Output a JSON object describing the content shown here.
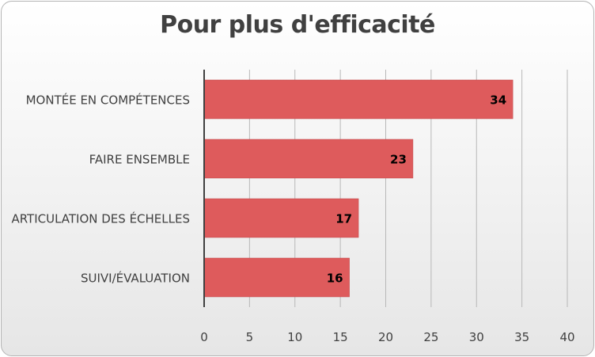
{
  "chart_data": {
    "type": "bar",
    "orientation": "horizontal",
    "title": "Pour plus d'efficacité",
    "categories": [
      "MONTÉE EN COMPÉTENCES",
      "FAIRE ENSEMBLE",
      "ARTICULATION DES ÉCHELLES",
      "SUIVI/ÉVALUATION"
    ],
    "values": [
      34,
      23,
      17,
      16
    ],
    "xlim": [
      0,
      40
    ],
    "xticks": [
      0,
      5,
      10,
      15,
      20,
      25,
      30,
      35,
      40
    ],
    "grid": true,
    "bar_color": "#de5b5c",
    "data_labels": true
  }
}
